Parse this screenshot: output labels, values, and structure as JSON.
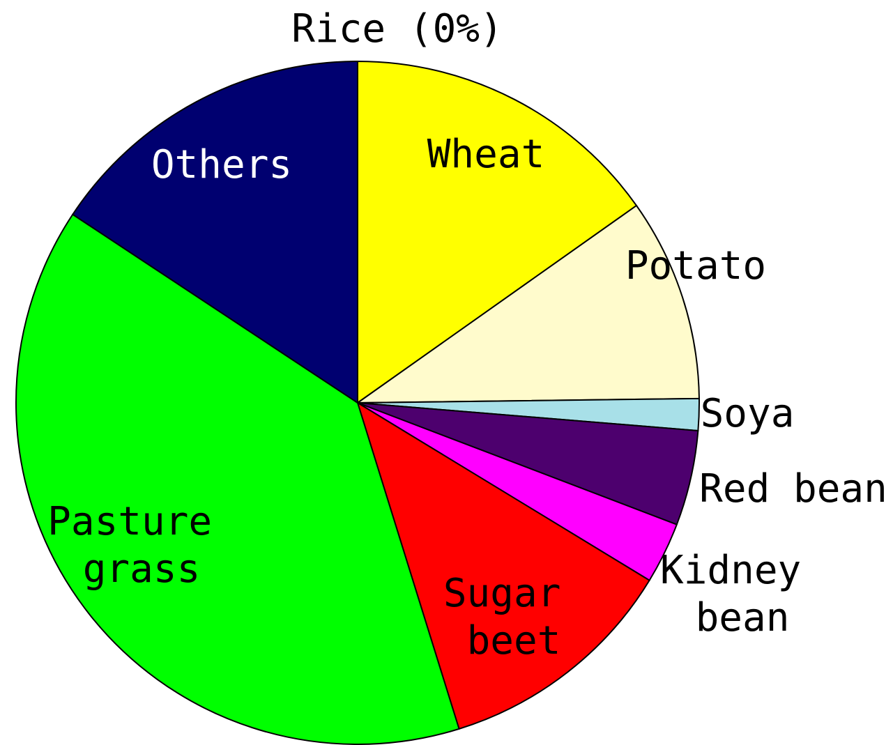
{
  "chart_data": {
    "type": "pie",
    "categories": [
      "Rice (0%)",
      "Wheat",
      "Potato",
      "Soya",
      "Red bean",
      "Kidney bean",
      "Sugar beet",
      "Pasture grass",
      "Others"
    ],
    "values": [
      0,
      15.2,
      9.6,
      1.5,
      4.5,
      2.9,
      11.5,
      39.1,
      15.7
    ],
    "colors": [
      "#ffffff",
      "#ffff00",
      "#fffbcc",
      "#a8e0e8",
      "#4d006e",
      "#ff00ff",
      "#ff0000",
      "#00ff00",
      "#000070"
    ]
  }
}
